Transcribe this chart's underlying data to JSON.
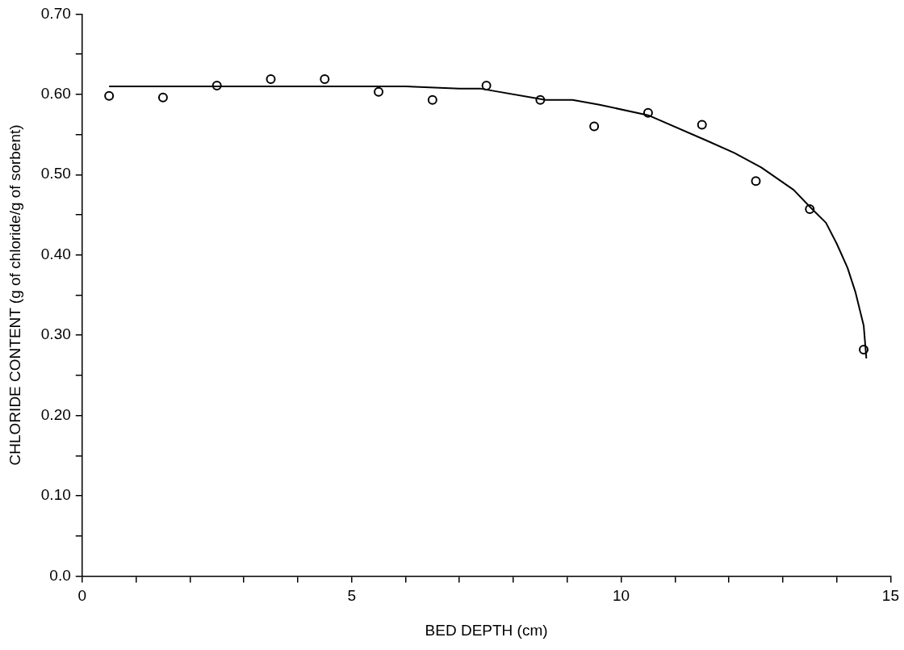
{
  "chart_data": {
    "type": "scatter",
    "xlabel": "BED DEPTH (cm)",
    "ylabel": "CHLORIDE CONTENT (g of chloride/g of sorbent)",
    "xlim": [
      0,
      15
    ],
    "ylim": [
      0,
      0.7
    ],
    "xticks": [
      0,
      {
        "value": 1,
        "label": null
      },
      {
        "value": 2,
        "label": null
      },
      {
        "value": 3,
        "label": null
      },
      {
        "value": 4,
        "label": null
      },
      5,
      {
        "value": 6,
        "label": null
      },
      {
        "value": 7,
        "label": null
      },
      {
        "value": 8,
        "label": null
      },
      {
        "value": 9,
        "label": null
      },
      10,
      {
        "value": 11,
        "label": null
      },
      {
        "value": 12,
        "label": null
      },
      {
        "value": 13,
        "label": null
      },
      {
        "value": 14,
        "label": null
      },
      15
    ],
    "yticks": [
      {
        "value": 0,
        "label": "0.0"
      },
      {
        "value": 0.05,
        "label": null
      },
      {
        "value": 0.1,
        "label": "0.10"
      },
      {
        "value": 0.15,
        "label": null
      },
      {
        "value": 0.2,
        "label": "0.20"
      },
      {
        "value": 0.25,
        "label": null
      },
      {
        "value": 0.3,
        "label": "0.30"
      },
      {
        "value": 0.35,
        "label": null
      },
      {
        "value": 0.4,
        "label": "0.40"
      },
      {
        "value": 0.45,
        "label": null
      },
      {
        "value": 0.5,
        "label": "0.50"
      },
      {
        "value": 0.55,
        "label": null
      },
      {
        "value": 0.6,
        "label": "0.60"
      },
      {
        "value": 0.65,
        "label": null
      },
      {
        "value": 0.7,
        "label": "0.70"
      }
    ],
    "grid": false,
    "legend": false,
    "series": [
      {
        "type": "line",
        "marker": "none",
        "line_style": "solid",
        "color": "#000000",
        "x": [
          0.5,
          6.0,
          7.0,
          7.4,
          8.6,
          9.1,
          9.6,
          10.5,
          11.6,
          12.1,
          12.6,
          13.2,
          13.5,
          13.8,
          14.0,
          14.2,
          14.35,
          14.5,
          14.55
        ],
        "values": [
          0.61,
          0.61,
          0.607,
          0.607,
          0.593,
          0.593,
          0.587,
          0.574,
          0.542,
          0.527,
          0.509,
          0.481,
          0.46,
          0.44,
          0.414,
          0.384,
          0.353,
          0.312,
          0.271
        ]
      },
      {
        "type": "scatter",
        "marker": "circle",
        "color": "#000000",
        "x": [
          0.5,
          1.5,
          2.5,
          3.5,
          4.5,
          5.5,
          6.5,
          7.5,
          8.5,
          9.5,
          10.5,
          11.5,
          12.5,
          13.5,
          14.5
        ],
        "values": [
          0.598,
          0.596,
          0.611,
          0.619,
          0.619,
          0.603,
          0.593,
          0.611,
          0.593,
          0.56,
          0.577,
          0.562,
          0.492,
          0.457,
          0.282
        ]
      }
    ]
  }
}
